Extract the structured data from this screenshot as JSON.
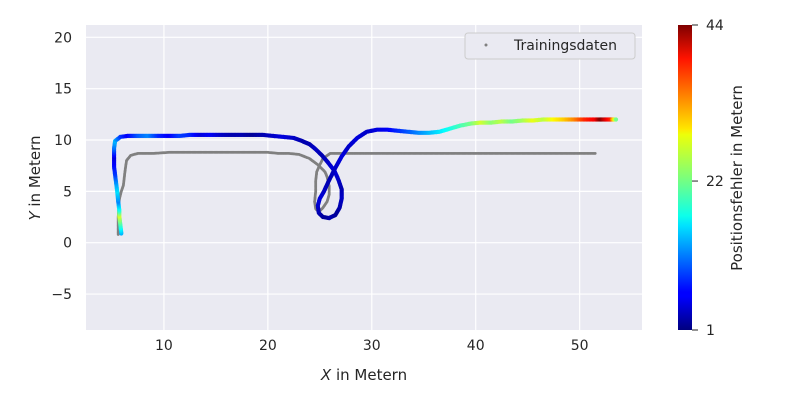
{
  "chart_data": {
    "type": "scatter",
    "xlabel_var": "X",
    "xlabel_rest": " in Metern",
    "ylabel_var": "Y",
    "ylabel_rest": " in Metern",
    "xlim": [
      2.5,
      56
    ],
    "ylim": [
      -8.5,
      21.2
    ],
    "xticks": [
      "10",
      "20",
      "30",
      "40",
      "50"
    ],
    "xtick_values": [
      10,
      20,
      30,
      40,
      50
    ],
    "yticks": [
      "−5",
      "0",
      "5",
      "10",
      "15",
      "20"
    ],
    "ytick_values": [
      -5,
      0,
      5,
      10,
      15,
      20
    ],
    "grid": true,
    "legend_position": "top-right",
    "legend_label": "Trainingsdaten",
    "colormap": "jet",
    "colorbar": {
      "label": "Positionsfehler in Metern",
      "min": 1,
      "max": 44,
      "ticks": [
        "1",
        "22",
        "44"
      ],
      "tick_values": [
        1,
        22,
        44
      ]
    },
    "series": [
      {
        "name": "Trainingsdaten",
        "color": "#808080",
        "points": [
          [
            5.6,
            0.8
          ],
          [
            5.6,
            2.5
          ],
          [
            5.7,
            4.2
          ],
          [
            5.9,
            5.0
          ],
          [
            6.1,
            5.6
          ],
          [
            6.2,
            6.5
          ],
          [
            6.3,
            7.3
          ],
          [
            6.4,
            8.0
          ],
          [
            6.8,
            8.5
          ],
          [
            7.5,
            8.7
          ],
          [
            9,
            8.7
          ],
          [
            10.5,
            8.8
          ],
          [
            12,
            8.8
          ],
          [
            14,
            8.8
          ],
          [
            16,
            8.8
          ],
          [
            18,
            8.8
          ],
          [
            20,
            8.8
          ],
          [
            21,
            8.7
          ],
          [
            22,
            8.7
          ],
          [
            23,
            8.6
          ],
          [
            24,
            8.2
          ],
          [
            24.8,
            7.6
          ],
          [
            25.2,
            7.2
          ],
          [
            25.5,
            6.9
          ],
          [
            25.7,
            6.4
          ],
          [
            25.9,
            5.5
          ],
          [
            25.9,
            4.7
          ],
          [
            25.7,
            4.0
          ],
          [
            25.3,
            3.4
          ],
          [
            24.9,
            3.0
          ],
          [
            24.6,
            3.3
          ],
          [
            24.5,
            4.0
          ],
          [
            24.6,
            5.0
          ],
          [
            24.6,
            6.0
          ],
          [
            24.7,
            6.9
          ],
          [
            25.0,
            7.6
          ],
          [
            25.3,
            8.2
          ],
          [
            26,
            8.7
          ],
          [
            27,
            8.7
          ],
          [
            29,
            8.7
          ],
          [
            31,
            8.7
          ],
          [
            33,
            8.7
          ],
          [
            35,
            8.7
          ],
          [
            37,
            8.7
          ],
          [
            39,
            8.7
          ],
          [
            41,
            8.7
          ],
          [
            43,
            8.7
          ],
          [
            45,
            8.7
          ],
          [
            47,
            8.7
          ],
          [
            49,
            8.7
          ],
          [
            51.5,
            8.7
          ]
        ]
      },
      {
        "name": "",
        "color_by": "error",
        "points": [
          [
            5.9,
            0.9,
            14
          ],
          [
            5.8,
            1.8,
            20
          ],
          [
            5.7,
            2.6,
            26
          ],
          [
            5.7,
            3.2,
            18
          ],
          [
            5.6,
            4.0,
            12
          ],
          [
            5.5,
            5.0,
            16
          ],
          [
            5.4,
            5.8,
            13
          ],
          [
            5.3,
            6.6,
            9
          ],
          [
            5.2,
            7.4,
            7
          ],
          [
            5.2,
            8.3,
            5
          ],
          [
            5.2,
            9.2,
            11
          ],
          [
            5.3,
            9.9,
            14
          ],
          [
            5.8,
            10.3,
            9
          ],
          [
            6.5,
            10.4,
            6
          ],
          [
            7.5,
            10.4,
            10
          ],
          [
            8.5,
            10.4,
            12
          ],
          [
            9.5,
            10.4,
            8
          ],
          [
            10.5,
            10.4,
            6
          ],
          [
            11.5,
            10.4,
            9
          ],
          [
            12.5,
            10.5,
            8
          ],
          [
            13.5,
            10.5,
            5
          ],
          [
            14.5,
            10.5,
            6
          ],
          [
            15.5,
            10.5,
            4
          ],
          [
            16.5,
            10.5,
            3
          ],
          [
            17.5,
            10.5,
            3
          ],
          [
            18.5,
            10.5,
            2
          ],
          [
            19.5,
            10.5,
            3
          ],
          [
            20.5,
            10.4,
            4
          ],
          [
            21.5,
            10.3,
            5
          ],
          [
            22.5,
            10.2,
            4
          ],
          [
            23.3,
            9.9,
            3
          ],
          [
            24.0,
            9.6,
            3
          ],
          [
            24.6,
            9.1,
            4
          ],
          [
            25.2,
            8.5,
            3
          ],
          [
            25.8,
            7.8,
            4
          ],
          [
            26.4,
            7.0,
            5
          ],
          [
            26.8,
            6.1,
            4
          ],
          [
            27.1,
            5.2,
            3
          ],
          [
            27.1,
            4.3,
            4
          ],
          [
            26.9,
            3.4,
            3
          ],
          [
            26.5,
            2.7,
            2
          ],
          [
            25.9,
            2.4,
            3
          ],
          [
            25.3,
            2.5,
            2
          ],
          [
            24.9,
            2.9,
            3
          ],
          [
            24.8,
            3.6,
            4
          ],
          [
            25.0,
            4.3,
            5
          ],
          [
            25.4,
            5.0,
            4
          ],
          [
            25.9,
            6.1,
            3
          ],
          [
            26.5,
            7.3,
            4
          ],
          [
            27.1,
            8.4,
            5
          ],
          [
            27.8,
            9.4,
            4
          ],
          [
            28.6,
            10.2,
            5
          ],
          [
            29.5,
            10.8,
            4
          ],
          [
            30.5,
            11.0,
            5
          ],
          [
            31.5,
            11.0,
            6
          ],
          [
            32.5,
            10.9,
            8
          ],
          [
            33.5,
            10.8,
            10
          ],
          [
            34.5,
            10.7,
            12
          ],
          [
            35.5,
            10.7,
            14
          ],
          [
            36.5,
            10.8,
            16
          ],
          [
            37.5,
            11.1,
            18
          ],
          [
            38.5,
            11.4,
            20
          ],
          [
            39.5,
            11.6,
            22
          ],
          [
            40.5,
            11.7,
            26
          ],
          [
            41.5,
            11.7,
            23
          ],
          [
            42.5,
            11.8,
            25
          ],
          [
            43.5,
            11.8,
            22
          ],
          [
            44.5,
            11.9,
            24
          ],
          [
            45.5,
            11.9,
            27
          ],
          [
            46.5,
            12.0,
            25
          ],
          [
            47.5,
            12.0,
            28
          ],
          [
            48.5,
            12.0,
            30
          ],
          [
            49.5,
            12.0,
            33
          ],
          [
            50.5,
            12.0,
            37
          ],
          [
            51.5,
            12.0,
            39
          ],
          [
            52.0,
            12.0,
            44
          ],
          [
            52.5,
            12.0,
            40
          ],
          [
            53.0,
            12.0,
            37
          ],
          [
            53.5,
            12.0,
            22
          ]
        ]
      }
    ]
  }
}
